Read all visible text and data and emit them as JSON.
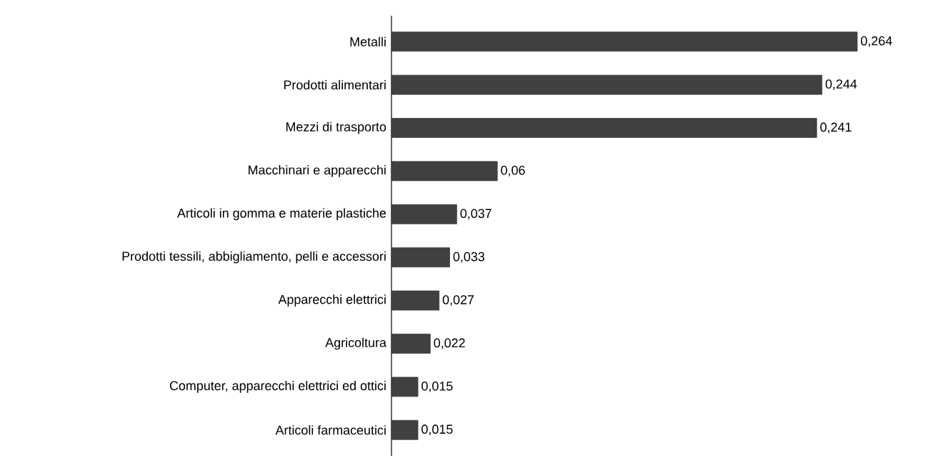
{
  "chart_data": {
    "type": "bar",
    "orientation": "horizontal",
    "categories": [
      "Metalli",
      "Prodotti alimentari",
      "Mezzi di trasporto",
      "Macchinari e apparecchi",
      "Articoli in gomma e materie plastiche",
      "Prodotti tessili, abbigliamento, pelli e accessori",
      "Apparecchi elettrici",
      "Agricoltura",
      "Computer, apparecchi elettrici ed ottici",
      "Articoli farmaceutici"
    ],
    "values": [
      0.264,
      0.244,
      0.241,
      0.06,
      0.037,
      0.033,
      0.027,
      0.022,
      0.015,
      0.015
    ],
    "value_labels": [
      "0,264",
      "0,244",
      "0,241",
      "0,06",
      "0,037",
      "0,033",
      "0,027",
      "0,022",
      "0,015",
      "0,015"
    ],
    "color": "#404040"
  }
}
